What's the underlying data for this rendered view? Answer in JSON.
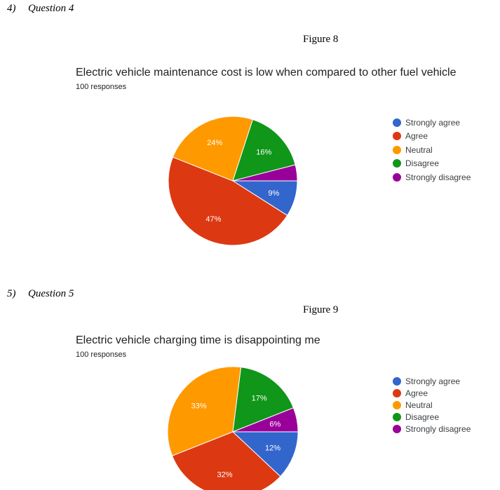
{
  "questions": [
    {
      "number": "4)",
      "label": "Question 4"
    },
    {
      "number": "5)",
      "label": "Question 5"
    }
  ],
  "figures": [
    "Figure 8",
    "Figure 9"
  ],
  "chart_data": [
    {
      "type": "pie",
      "title": "Electric vehicle maintenance cost is low when compared to other fuel vehicle",
      "subtitle": "100 responses",
      "categories": [
        "Strongly agree",
        "Agree",
        "Neutral",
        "Disagree",
        "Strongly disagree"
      ],
      "values": [
        9,
        47,
        24,
        16,
        4
      ],
      "labels": [
        "9%",
        "47%",
        "24%",
        "16%",
        ""
      ],
      "colors": [
        "#3366cc",
        "#dc3912",
        "#ff9900",
        "#109618",
        "#990099"
      ],
      "legend_position": "right"
    },
    {
      "type": "pie",
      "title": "Electric vehicle charging time is disappointing me",
      "subtitle": "100 responses",
      "categories": [
        "Strongly agree",
        "Agree",
        "Neutral",
        "Disagree",
        "Strongly disagree"
      ],
      "values": [
        12,
        32,
        33,
        17,
        6
      ],
      "labels": [
        "12%",
        "32%",
        "33%",
        "17%",
        "6%"
      ],
      "colors": [
        "#3366cc",
        "#dc3912",
        "#ff9900",
        "#109618",
        "#990099"
      ],
      "legend_position": "right"
    }
  ]
}
